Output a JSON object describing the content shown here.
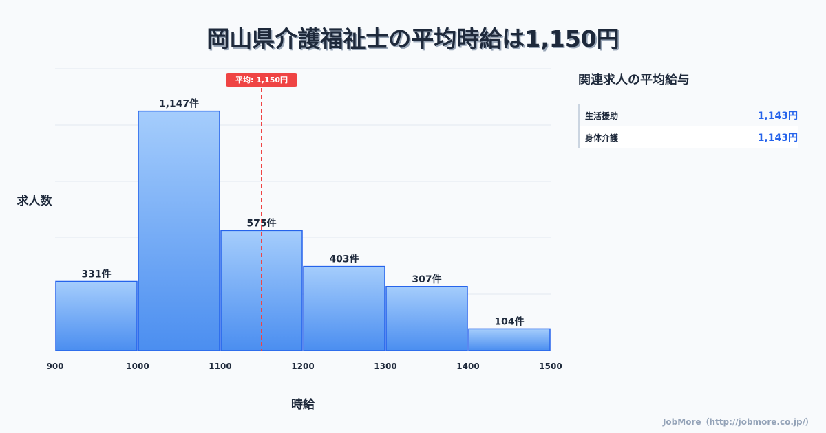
{
  "title": "岡山県介護福祉士の平均時給は1,150円",
  "chart_data": {
    "type": "bar",
    "title": "岡山県介護福祉士の平均時給は1,150円",
    "xlabel": "時給",
    "ylabel": "求人数",
    "bins": [
      900,
      1000,
      1100,
      1200,
      1300,
      1400,
      1500
    ],
    "x_ticks": [
      "900",
      "1000",
      "1100",
      "1200",
      "1300",
      "1400",
      "1500"
    ],
    "values": [
      331,
      1147,
      575,
      403,
      307,
      104
    ],
    "labels": [
      "331件",
      "1,147件",
      "575件",
      "403件",
      "307件",
      "104件"
    ],
    "ylim": [
      0,
      1350
    ],
    "mean": 1150,
    "mean_label": "平均: 1,150円",
    "grid": true
  },
  "related": {
    "heading": "関連求人の平均給与",
    "items": [
      {
        "name": "生活援助",
        "value": "1,143円"
      },
      {
        "name": "身体介護",
        "value": "1,143円"
      }
    ]
  },
  "footer": "JobMore（http://jobmore.co.jp/）",
  "colors": {
    "bar_top": "#a5cdfc",
    "bar_bottom": "#4b8ef0",
    "bar_stroke": "#2563eb",
    "mean": "#ef4444"
  }
}
